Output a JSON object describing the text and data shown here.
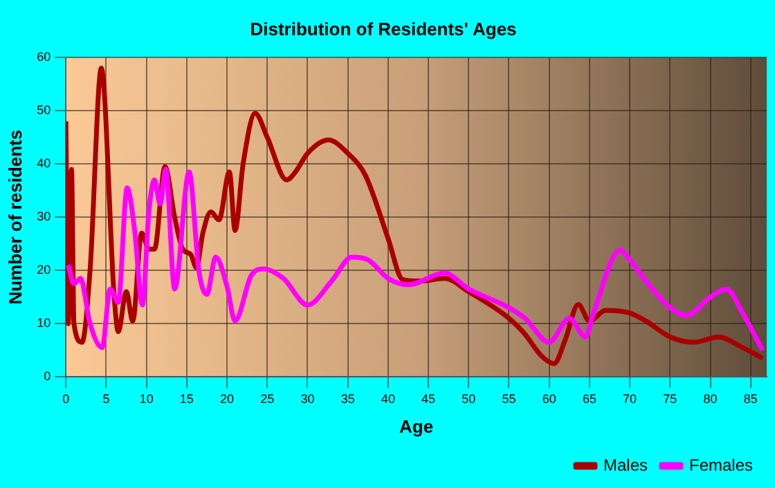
{
  "chart_data": {
    "type": "line",
    "title": "Distribution of Residents' Ages",
    "xlabel": "Age",
    "ylabel": "Number of residents",
    "xlim": [
      0,
      87
    ],
    "xticks": [
      0,
      5,
      10,
      15,
      20,
      25,
      30,
      35,
      40,
      45,
      50,
      55,
      60,
      65,
      70,
      75,
      80,
      85
    ],
    "ylim": [
      0,
      60
    ],
    "yticks": [
      0,
      10,
      20,
      30,
      40,
      50,
      60
    ],
    "grid": true,
    "legend": "bottom right",
    "marker": "none",
    "line_style": "solid",
    "series": [
      {
        "name": "Males",
        "color": "#aa0000",
        "x": [
          0,
          0.3,
          0.7,
          1,
          2,
          3,
          4.4,
          6,
          6.5,
          7.5,
          8.3,
          9.4,
          10.3,
          11,
          12.3,
          13.5,
          14.5,
          15.5,
          16.2,
          17,
          18,
          19,
          20.3,
          21,
          22,
          23.5,
          25,
          27.4,
          28.5,
          30,
          32.6,
          35,
          37.2,
          40,
          41.8,
          44,
          47,
          50,
          55,
          57,
          59,
          60.6,
          62,
          63.6,
          65,
          67,
          70,
          72,
          75,
          78,
          81,
          84,
          86.5
        ],
        "values": [
          48,
          10,
          39,
          10,
          6.5,
          20,
          58,
          15,
          8.5,
          16,
          10.5,
          27,
          24,
          24,
          39.5,
          30,
          24,
          23,
          20.5,
          27,
          31,
          29.5,
          38.5,
          27.5,
          40,
          49.5,
          45,
          37,
          38.5,
          42,
          44.5,
          42,
          37.8,
          26,
          18.3,
          18,
          18.5,
          16,
          11,
          8,
          4,
          2.5,
          7,
          13.6,
          10.5,
          12.5,
          12,
          10.5,
          7.5,
          6.5,
          7.5,
          5.5,
          3.5
        ]
      },
      {
        "name": "Females",
        "color": "#ff00ff",
        "x": [
          0.3,
          1,
          1.8,
          3,
          4.5,
          5.5,
          6.5,
          7.6,
          8.5,
          9.5,
          10.3,
          11,
          11.7,
          12.4,
          13.5,
          15.3,
          16.5,
          17.5,
          18.6,
          20,
          21,
          23,
          24.5,
          27,
          30,
          33,
          35.5,
          37.5,
          40,
          42.5,
          47,
          50,
          55,
          57,
          60,
          62.5,
          64.5,
          65.5,
          68.8,
          70,
          72,
          75,
          77,
          80,
          82,
          84,
          86.5
        ],
        "values": [
          21,
          17.5,
          18.5,
          10,
          5.5,
          16.5,
          14,
          35.5,
          28,
          13.5,
          31,
          37,
          32.5,
          39,
          16.5,
          38.5,
          20,
          15.5,
          22.5,
          17,
          10.5,
          19,
          20.3,
          18.5,
          13.5,
          18,
          22.5,
          22,
          18.5,
          17.3,
          19.5,
          16.5,
          13,
          11,
          6.5,
          11,
          7.5,
          12,
          23.8,
          22,
          18,
          13,
          11.5,
          15,
          16.5,
          12,
          5
        ]
      }
    ]
  }
}
